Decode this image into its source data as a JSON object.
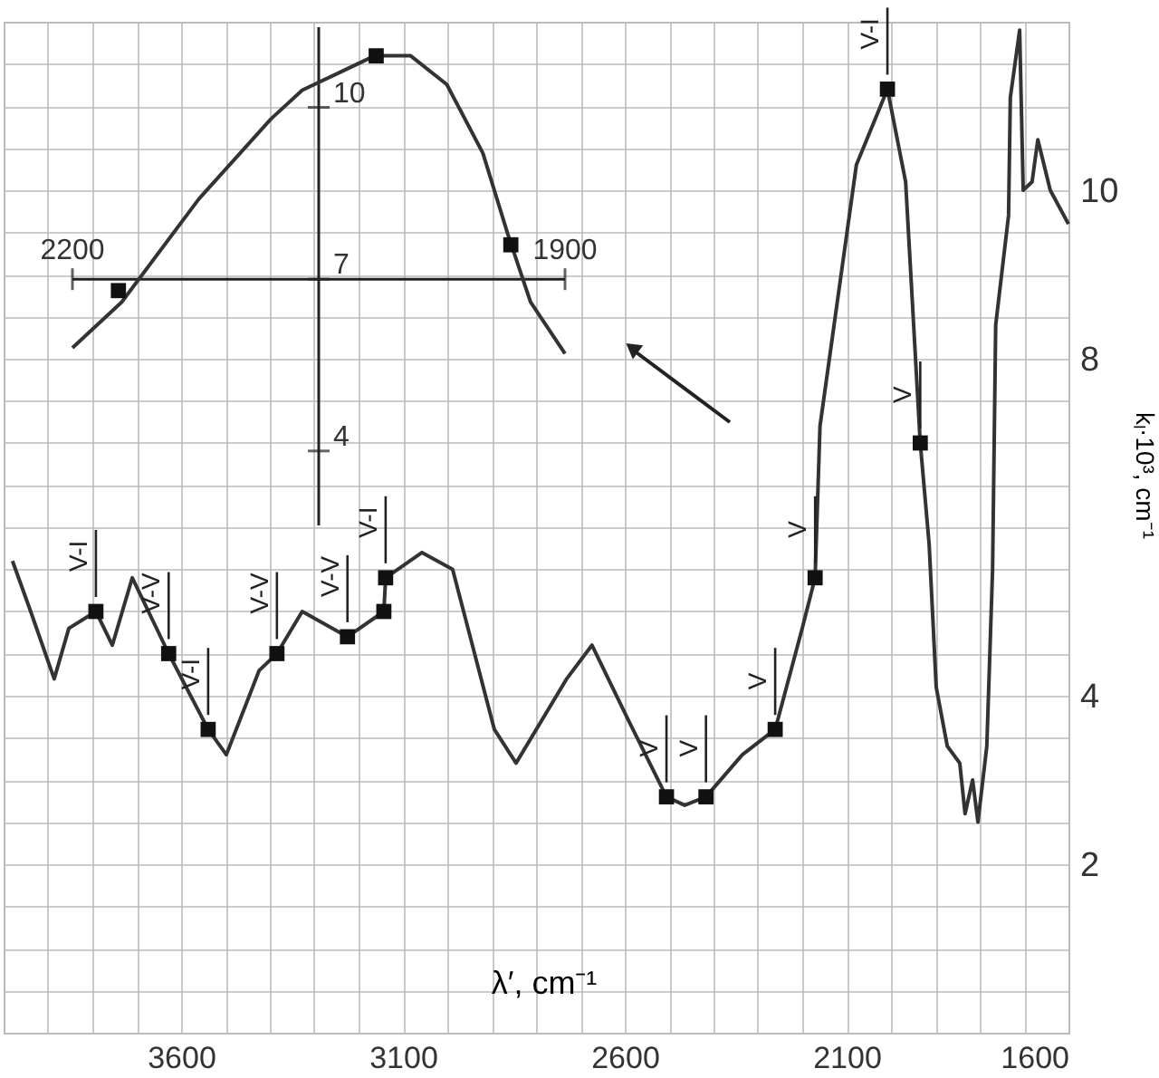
{
  "chart_data": [
    {
      "type": "line",
      "xlabel": "λ′, cm⁻¹",
      "ylabel": "kₗ·10³, cm⁻¹",
      "xlim": [
        4000,
        1600
      ],
      "ylim": [
        0,
        12
      ],
      "grid": true,
      "xticks": [
        {
          "value": 3900,
          "label": null
        },
        {
          "value": 3800,
          "label": null
        },
        {
          "value": 3700,
          "label": null
        },
        3600,
        {
          "value": 3500,
          "label": null
        },
        {
          "value": 3400,
          "label": null
        },
        {
          "value": 3300,
          "label": null
        },
        {
          "value": 3200,
          "label": null
        },
        3100,
        {
          "value": 3000,
          "label": null
        },
        {
          "value": 2900,
          "label": null
        },
        {
          "value": 2800,
          "label": null
        },
        {
          "value": 2700,
          "label": null
        },
        2600,
        {
          "value": 2500,
          "label": null
        },
        {
          "value": 2400,
          "label": null
        },
        {
          "value": 2300,
          "label": null
        },
        {
          "value": 2200,
          "label": null
        },
        2100,
        {
          "value": 2000,
          "label": null
        },
        {
          "value": 1900,
          "label": null
        },
        {
          "value": 1800,
          "label": null
        },
        {
          "value": 1700,
          "label": null
        },
        1600
      ],
      "yticks": [
        {
          "value": 0.5,
          "label": null
        },
        {
          "value": 1,
          "label": null
        },
        {
          "value": 1.5,
          "label": null
        },
        2,
        {
          "value": 2.5,
          "label": null
        },
        {
          "value": 3,
          "label": null
        },
        {
          "value": 3.5,
          "label": null
        },
        4,
        {
          "value": 4.5,
          "label": null
        },
        {
          "value": 5,
          "label": null
        },
        {
          "value": 5.5,
          "label": null
        },
        {
          "value": 6,
          "label": null
        },
        {
          "value": 6.5,
          "label": null
        },
        {
          "value": 7,
          "label": null
        },
        {
          "value": 7.5,
          "label": null
        },
        8,
        {
          "value": 8.5,
          "label": null
        },
        {
          "value": 9,
          "label": null
        },
        {
          "value": 9.5,
          "label": null
        },
        10,
        {
          "value": 10.5,
          "label": null
        },
        {
          "value": 11,
          "label": null
        },
        {
          "value": 11.5,
          "label": null
        }
      ],
      "series": [
        {
          "type": "line",
          "color": "#333333",
          "line_style": "solid",
          "x": [
            3980,
            3939,
            3886,
            3853,
            3792,
            3755,
            3710,
            3628,
            3539,
            3498,
            3424,
            3384,
            3327,
            3225,
            3143,
            3139,
            3057,
            2988,
            2894,
            2845,
            2731,
            2674,
            2591,
            2506,
            2465,
            2417,
            2335,
            2261,
            2200,
            2171,
            2160,
            2078,
            2008,
            1967,
            1934,
            1914,
            1898,
            1873,
            1845,
            1833,
            1816,
            1804,
            1784,
            1771,
            1764,
            1735,
            1731,
            1710,
            1702,
            1682,
            1669,
            1641,
            1600
          ],
          "values": [
            5.6,
            5.0,
            4.2,
            4.8,
            5.0,
            4.6,
            5.4,
            4.5,
            3.6,
            3.3,
            4.3,
            4.5,
            5.0,
            4.7,
            5.0,
            5.4,
            5.7,
            5.5,
            3.6,
            3.2,
            4.2,
            4.6,
            3.7,
            2.8,
            2.7,
            2.8,
            3.3,
            3.6,
            4.8,
            5.4,
            7.2,
            10.3,
            11.2,
            10.1,
            7.0,
            5.8,
            4.1,
            3.4,
            3.2,
            2.6,
            3.0,
            2.5,
            3.4,
            5.5,
            8.4,
            9.7,
            11.1,
            11.9,
            10.0,
            10.1,
            10.6,
            10.0,
            9.6
          ]
        },
        {
          "type": "scatter",
          "color": "#111111",
          "marker": "square",
          "x": [
            3792,
            3628,
            3539,
            3384,
            3225,
            3143,
            3139,
            2506,
            2417,
            2261,
            2171,
            2008,
            1934
          ],
          "values": [
            5.0,
            4.5,
            3.6,
            4.5,
            4.7,
            5.0,
            5.4,
            2.8,
            2.8,
            3.6,
            5.4,
            11.2,
            7.0
          ]
        }
      ],
      "annotations": [
        {
          "text": "V-I",
          "x": 3792,
          "y": 5.0
        },
        {
          "text": "V-V",
          "x": 3628,
          "y": 4.5
        },
        {
          "text": "V-I",
          "x": 3539,
          "y": 3.6
        },
        {
          "text": "V-V",
          "x": 3384,
          "y": 4.5
        },
        {
          "text": "V-V",
          "x": 3225,
          "y": 4.7
        },
        {
          "text": "V-I",
          "x": 3139,
          "y": 5.4
        },
        {
          "text": "V",
          "x": 2506,
          "y": 2.8
        },
        {
          "text": "V",
          "x": 2417,
          "y": 2.8
        },
        {
          "text": "V",
          "x": 2261,
          "y": 3.6
        },
        {
          "text": "V",
          "x": 2171,
          "y": 5.4
        },
        {
          "text": "V-I",
          "x": 2008,
          "y": 11.2
        },
        {
          "text": "V",
          "x": 1934,
          "y": 7.0
        }
      ]
    },
    {
      "type": "line",
      "xlim": [
        2200,
        1900
      ],
      "ylim": [
        2.7,
        11.4
      ],
      "xticks": [
        2200,
        1900
      ],
      "yticks": [
        4,
        7,
        10
      ],
      "series": [
        {
          "type": "line",
          "color": "#333333",
          "line_style": "solid",
          "x": [
            2200,
            2170,
            2123,
            2079,
            2060,
            2038,
            2016,
            1994,
            1972,
            1950,
            1935,
            1921,
            1900
          ],
          "values": [
            5.8,
            6.6,
            8.4,
            9.8,
            10.3,
            10.6,
            10.9,
            10.9,
            10.4,
            9.2,
            7.8,
            6.6,
            5.7
          ]
        },
        {
          "type": "scatter",
          "color": "#111111",
          "marker": "square",
          "x": [
            2172,
            2015,
            1933
          ],
          "values": [
            6.8,
            10.9,
            7.6
          ]
        }
      ]
    }
  ]
}
